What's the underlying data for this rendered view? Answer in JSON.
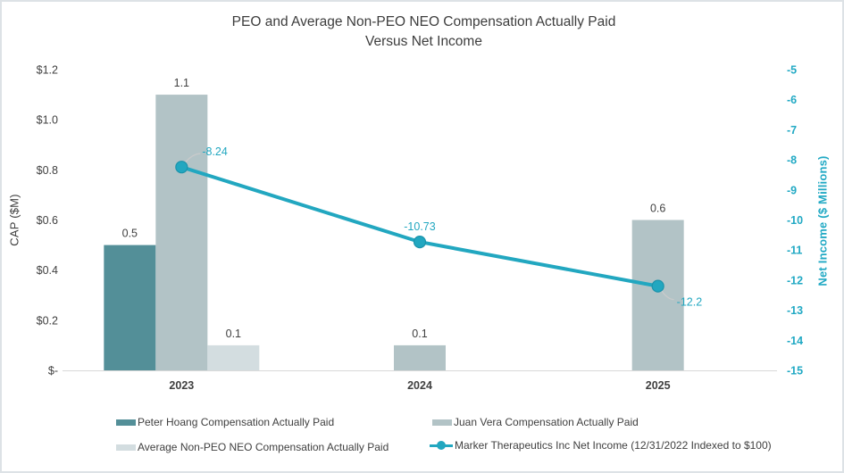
{
  "title": {
    "line1": "PEO and Average Non-PEO NEO Compensation Actually Paid",
    "line2": "Versus Net Income"
  },
  "colors": {
    "peo_bar": "#538f98",
    "juan_bar": "#b2c3c6",
    "avg_bar": "#d3dde0",
    "net_income_line": "#22a7c0",
    "marker_stroke": "#1b93ab",
    "right_axis_text": "#21a9c4",
    "dark_text": "#404040",
    "axis_line": "#d9d9d9",
    "leader_line": "#c8cacb"
  },
  "chart_data": {
    "type": "combo-bar-line",
    "title": "PEO and Average Non-PEO NEO Compensation Actually Paid Versus Net Income",
    "categories": [
      "2023",
      "2024",
      "2025"
    ],
    "bar_series": [
      {
        "name": "Peter Hoang Compensation Actually Paid",
        "color": "#538f98",
        "values": [
          0.5,
          null,
          null
        ],
        "labels": [
          "0.5",
          "",
          ""
        ]
      },
      {
        "name": "Juan Vera Compensation Actually Paid",
        "color": "#b2c3c6",
        "values": [
          1.1,
          0.1,
          0.6
        ],
        "labels": [
          "1.1",
          "0.1",
          "0.6"
        ]
      },
      {
        "name": "Average Non-PEO NEO Compensation Actually Paid",
        "color": "#d3dde0",
        "values": [
          0.1,
          null,
          null
        ],
        "labels": [
          "0.1",
          "",
          ""
        ]
      }
    ],
    "line_series": {
      "name": "Marker Therapeutics Inc Net Income (12/31/2022 Indexed to $100)",
      "color": "#22a7c0",
      "values": [
        -8.24,
        -10.73,
        -12.2
      ],
      "labels": [
        "-8.24",
        "-10.73",
        "-12.2"
      ]
    },
    "left_axis": {
      "title": "CAP ($M)",
      "min": 0,
      "max": 1.2,
      "ticks": [
        "$1.2",
        "$1.0",
        "$0.8",
        "$0.6",
        "$0.4",
        "$0.2",
        "$-"
      ]
    },
    "right_axis": {
      "title": "Net Income ($ Millions)",
      "min": -15,
      "max": -5,
      "ticks": [
        "-5",
        "-6",
        "-7",
        "-8",
        "-9",
        "-10",
        "-11",
        "-12",
        "-13",
        "-14",
        "-15"
      ]
    },
    "grid": false,
    "legend_position": "bottom"
  },
  "legend": {
    "items": [
      {
        "label": "Peter Hoang Compensation Actually Paid",
        "swatch": "#538f98"
      },
      {
        "label": "Juan Vera Compensation Actually Paid",
        "swatch": "#b2c3c6"
      },
      {
        "label": "Average Non-PEO NEO Compensation Actually Paid",
        "swatch": "#d3dde0"
      },
      {
        "label": "Marker Therapeutics Inc Net Income (12/31/2022 Indexed to $100)",
        "swatch": "#22a7c0"
      }
    ]
  }
}
